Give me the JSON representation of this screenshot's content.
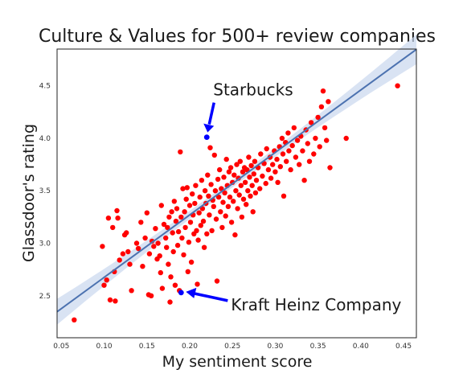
{
  "chart_data": {
    "type": "scatter",
    "title": "Culture & Values for 500+ review companies",
    "xlabel": "My sentiment score",
    "ylabel": "Glassdoor's rating",
    "xlim": [
      0.045,
      0.465
    ],
    "ylim": [
      2.1,
      4.85
    ],
    "xticks": [
      "0.05",
      "0.10",
      "0.15",
      "0.20",
      "0.25",
      "0.30",
      "0.35",
      "0.40",
      "0.45"
    ],
    "yticks": [
      "2.5",
      "3.0",
      "3.5",
      "4.0",
      "4.5"
    ],
    "grid": false,
    "regression": {
      "slope": 5.95,
      "intercept": 2.08,
      "ci_color": "#c9d7ee",
      "line_color": "#4c72b0"
    },
    "point_color": "#ff0000",
    "highlight_color": "#0000ff",
    "highlights": [
      {
        "label": "Starbucks",
        "x": 0.22,
        "y": 4.01
      },
      {
        "label": "Kraft Heinz Company",
        "x": 0.19,
        "y": 2.53
      }
    ],
    "points": [
      [
        0.065,
        2.27
      ],
      [
        0.098,
        2.97
      ],
      [
        0.1,
        2.6
      ],
      [
        0.103,
        2.65
      ],
      [
        0.105,
        3.24
      ],
      [
        0.107,
        2.46
      ],
      [
        0.11,
        3.15
      ],
      [
        0.112,
        2.73
      ],
      [
        0.113,
        2.45
      ],
      [
        0.115,
        3.31
      ],
      [
        0.116,
        3.24
      ],
      [
        0.118,
        2.84
      ],
      [
        0.122,
        2.9
      ],
      [
        0.124,
        3.08
      ],
      [
        0.126,
        3.1
      ],
      [
        0.128,
        2.92
      ],
      [
        0.13,
        2.8
      ],
      [
        0.132,
        2.55
      ],
      [
        0.138,
        3.0
      ],
      [
        0.14,
        2.95
      ],
      [
        0.143,
        3.2
      ],
      [
        0.145,
        2.78
      ],
      [
        0.148,
        3.05
      ],
      [
        0.15,
        3.29
      ],
      [
        0.152,
        2.51
      ],
      [
        0.153,
        2.9
      ],
      [
        0.155,
        2.5
      ],
      [
        0.156,
        3.02
      ],
      [
        0.158,
        2.97
      ],
      [
        0.16,
        3.14
      ],
      [
        0.162,
        2.85
      ],
      [
        0.163,
        3.0
      ],
      [
        0.165,
        2.88
      ],
      [
        0.166,
        2.72
      ],
      [
        0.167,
        3.36
      ],
      [
        0.168,
        2.57
      ],
      [
        0.17,
        3.18
      ],
      [
        0.172,
        3.05
      ],
      [
        0.173,
        2.96
      ],
      [
        0.174,
        3.15
      ],
      [
        0.175,
        2.8
      ],
      [
        0.176,
        3.25
      ],
      [
        0.177,
        2.44
      ],
      [
        0.178,
        2.68
      ],
      [
        0.179,
        3.3
      ],
      [
        0.18,
        3.1
      ],
      [
        0.181,
        2.92
      ],
      [
        0.182,
        3.4
      ],
      [
        0.183,
        2.6
      ],
      [
        0.184,
        3.21
      ],
      [
        0.185,
        3.33
      ],
      [
        0.186,
        2.98
      ],
      [
        0.187,
        3.11
      ],
      [
        0.188,
        2.55
      ],
      [
        0.189,
        3.87
      ],
      [
        0.19,
        3.25
      ],
      [
        0.191,
        3.05
      ],
      [
        0.192,
        3.52
      ],
      [
        0.193,
        2.89
      ],
      [
        0.194,
        3.3
      ],
      [
        0.195,
        3.15
      ],
      [
        0.196,
        3.42
      ],
      [
        0.197,
        3.53
      ],
      [
        0.198,
        2.73
      ],
      [
        0.199,
        3.01
      ],
      [
        0.2,
        3.36
      ],
      [
        0.201,
        3.2
      ],
      [
        0.202,
        2.82
      ],
      [
        0.203,
        3.47
      ],
      [
        0.204,
        3.27
      ],
      [
        0.205,
        3.09
      ],
      [
        0.206,
        3.38
      ],
      [
        0.207,
        3.55
      ],
      [
        0.208,
        3.12
      ],
      [
        0.209,
        2.61
      ],
      [
        0.21,
        3.03
      ],
      [
        0.211,
        3.29
      ],
      [
        0.212,
        3.44
      ],
      [
        0.213,
        3.17
      ],
      [
        0.214,
        3.6
      ],
      [
        0.215,
        3.33
      ],
      [
        0.216,
        3.21
      ],
      [
        0.217,
        2.96
      ],
      [
        0.218,
        3.5
      ],
      [
        0.219,
        3.38
      ],
      [
        0.22,
        3.09
      ],
      [
        0.221,
        3.65
      ],
      [
        0.222,
        3.45
      ],
      [
        0.223,
        3.27
      ],
      [
        0.224,
        3.91
      ],
      [
        0.225,
        3.56
      ],
      [
        0.226,
        3.12
      ],
      [
        0.227,
        3.41
      ],
      [
        0.228,
        3.35
      ],
      [
        0.229,
        3.84
      ],
      [
        0.23,
        3.5
      ],
      [
        0.231,
        3.23
      ],
      [
        0.232,
        2.64
      ],
      [
        0.233,
        3.61
      ],
      [
        0.234,
        3.44
      ],
      [
        0.235,
        3.7
      ],
      [
        0.236,
        3.3
      ],
      [
        0.237,
        3.52
      ],
      [
        0.238,
        3.15
      ],
      [
        0.239,
        3.39
      ],
      [
        0.24,
        3.63
      ],
      [
        0.241,
        3.48
      ],
      [
        0.242,
        3.26
      ],
      [
        0.243,
        3.8
      ],
      [
        0.244,
        3.55
      ],
      [
        0.245,
        3.35
      ],
      [
        0.246,
        3.68
      ],
      [
        0.247,
        3.44
      ],
      [
        0.248,
        3.72
      ],
      [
        0.249,
        3.2
      ],
      [
        0.25,
        3.58
      ],
      [
        0.251,
        3.4
      ],
      [
        0.252,
        3.65
      ],
      [
        0.253,
        3.08
      ],
      [
        0.254,
        3.5
      ],
      [
        0.255,
        3.75
      ],
      [
        0.256,
        3.33
      ],
      [
        0.257,
        3.62
      ],
      [
        0.258,
        3.46
      ],
      [
        0.259,
        3.78
      ],
      [
        0.26,
        3.55
      ],
      [
        0.261,
        3.25
      ],
      [
        0.262,
        3.68
      ],
      [
        0.263,
        3.42
      ],
      [
        0.264,
        3.72
      ],
      [
        0.265,
        3.58
      ],
      [
        0.266,
        3.37
      ],
      [
        0.267,
        3.7
      ],
      [
        0.268,
        3.5
      ],
      [
        0.269,
        3.82
      ],
      [
        0.27,
        3.63
      ],
      [
        0.271,
        3.45
      ],
      [
        0.272,
        3.74
      ],
      [
        0.273,
        3.55
      ],
      [
        0.274,
        3.3
      ],
      [
        0.275,
        3.66
      ],
      [
        0.276,
        3.78
      ],
      [
        0.277,
        3.48
      ],
      [
        0.278,
        3.6
      ],
      [
        0.28,
        3.72
      ],
      [
        0.282,
        3.52
      ],
      [
        0.283,
        3.85
      ],
      [
        0.285,
        3.64
      ],
      [
        0.287,
        3.76
      ],
      [
        0.289,
        3.57
      ],
      [
        0.29,
        3.9
      ],
      [
        0.292,
        3.7
      ],
      [
        0.294,
        3.82
      ],
      [
        0.295,
        3.62
      ],
      [
        0.297,
        3.75
      ],
      [
        0.299,
        3.88
      ],
      [
        0.3,
        3.68
      ],
      [
        0.302,
        3.8
      ],
      [
        0.303,
        3.58
      ],
      [
        0.305,
        3.92
      ],
      [
        0.306,
        3.73
      ],
      [
        0.308,
        4.0
      ],
      [
        0.309,
        3.85
      ],
      [
        0.31,
        3.45
      ],
      [
        0.312,
        3.96
      ],
      [
        0.313,
        3.78
      ],
      [
        0.315,
        4.05
      ],
      [
        0.316,
        3.88
      ],
      [
        0.318,
        3.7
      ],
      [
        0.32,
        3.93
      ],
      [
        0.322,
        4.1
      ],
      [
        0.324,
        3.82
      ],
      [
        0.326,
        3.98
      ],
      [
        0.328,
        3.75
      ],
      [
        0.33,
        4.02
      ],
      [
        0.332,
        3.88
      ],
      [
        0.334,
        3.6
      ],
      [
        0.336,
        4.08
      ],
      [
        0.338,
        3.95
      ],
      [
        0.34,
        3.78
      ],
      [
        0.342,
        4.15
      ],
      [
        0.345,
        3.85
      ],
      [
        0.347,
        4.0
      ],
      [
        0.35,
        4.2
      ],
      [
        0.352,
        3.92
      ],
      [
        0.354,
        4.3
      ],
      [
        0.356,
        4.45
      ],
      [
        0.358,
        4.1
      ],
      [
        0.36,
        3.98
      ],
      [
        0.362,
        4.35
      ],
      [
        0.364,
        3.72
      ],
      [
        0.383,
        4.0
      ],
      [
        0.443,
        4.5
      ]
    ]
  }
}
